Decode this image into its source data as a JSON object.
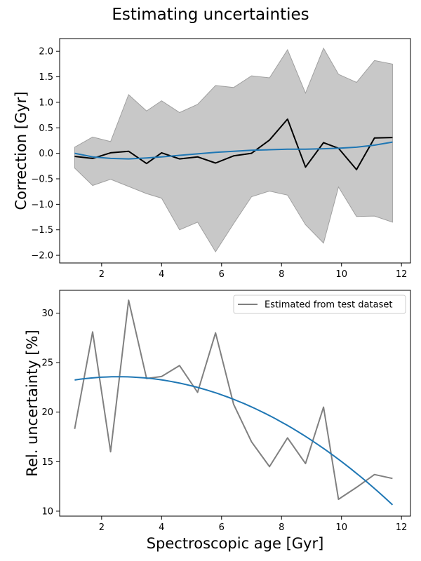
{
  "figure": {
    "title": "Estimating uncertainties"
  },
  "chart_data": [
    {
      "type": "line",
      "panel": "top",
      "xlabel": "",
      "ylabel": "Correction [Gyr]",
      "xlim": [
        0.6,
        12.3
      ],
      "ylim": [
        -2.15,
        2.25
      ],
      "xticks": [
        2,
        4,
        6,
        8,
        10,
        12
      ],
      "yticks": [
        -2.0,
        -1.5,
        -1.0,
        -0.5,
        0.0,
        0.5,
        1.0,
        1.5,
        2.0
      ],
      "x": [
        1.1,
        1.7,
        2.3,
        2.9,
        3.5,
        4.0,
        4.6,
        5.2,
        5.8,
        6.4,
        7.0,
        7.6,
        8.2,
        8.8,
        9.4,
        9.9,
        10.5,
        11.1,
        11.7
      ],
      "series": [
        {
          "kind": "band",
          "color": "#c8c8c8",
          "edge": "#a0a0a0",
          "upper": [
            0.12,
            0.32,
            0.23,
            1.15,
            0.83,
            1.03,
            0.8,
            0.96,
            1.33,
            1.29,
            1.52,
            1.48,
            2.03,
            1.18,
            2.06,
            1.55,
            1.39,
            1.82,
            1.75
          ],
          "lower": [
            -0.29,
            -0.63,
            -0.51,
            -0.65,
            -0.79,
            -0.88,
            -1.5,
            -1.35,
            -1.93,
            -1.38,
            -0.85,
            -0.74,
            -0.82,
            -1.4,
            -1.76,
            -0.66,
            -1.24,
            -1.23,
            -1.35
          ]
        },
        {
          "kind": "line",
          "color": "#000000",
          "values": [
            -0.06,
            -0.1,
            0.01,
            0.04,
            -0.2,
            0.01,
            -0.11,
            -0.07,
            -0.19,
            -0.05,
            0.0,
            0.26,
            0.67,
            -0.27,
            0.21,
            0.1,
            -0.32,
            0.3,
            0.31
          ]
        },
        {
          "kind": "line",
          "color": "#1f77b4",
          "values": [
            0.0,
            -0.07,
            -0.1,
            -0.11,
            -0.09,
            -0.07,
            -0.04,
            -0.01,
            0.02,
            0.04,
            0.06,
            0.07,
            0.08,
            0.08,
            0.09,
            0.1,
            0.12,
            0.16,
            0.22
          ]
        }
      ]
    },
    {
      "type": "line",
      "panel": "bottom",
      "xlabel": "Spectroscopic age [Gyr]",
      "ylabel": "Rel. uncertainty [%]",
      "xlim": [
        0.6,
        12.3
      ],
      "ylim": [
        9.5,
        32.3
      ],
      "xticks": [
        2,
        4,
        6,
        8,
        10,
        12
      ],
      "yticks": [
        10,
        15,
        20,
        25,
        30
      ],
      "legend": {
        "position": "top-right",
        "entries": [
          {
            "label": "Estimated from test dataset",
            "color": "#808080"
          }
        ]
      },
      "x": [
        1.1,
        1.7,
        2.3,
        2.9,
        3.5,
        4.0,
        4.6,
        5.2,
        5.8,
        6.4,
        7.0,
        7.6,
        8.2,
        8.8,
        9.4,
        9.9,
        10.5,
        11.1,
        11.7
      ],
      "series": [
        {
          "kind": "line",
          "name": "Estimated from test dataset",
          "color": "#808080",
          "values": [
            18.3,
            28.1,
            16.0,
            31.3,
            23.4,
            23.6,
            24.7,
            22.0,
            28.0,
            20.8,
            17.0,
            14.5,
            17.4,
            14.8,
            20.5,
            11.2,
            12.4,
            13.7,
            13.3
          ]
        }
      ],
      "fit": {
        "kind": "quadratic",
        "color": "#1f77b4",
        "x_range": [
          1.1,
          11.7
        ],
        "points": [
          [
            1.1,
            23.3
          ],
          [
            2.3,
            23.55
          ],
          [
            4.0,
            23.2
          ],
          [
            5.8,
            21.9
          ],
          [
            8.2,
            18.6
          ],
          [
            9.9,
            15.5
          ],
          [
            11.7,
            10.5
          ]
        ]
      }
    }
  ]
}
